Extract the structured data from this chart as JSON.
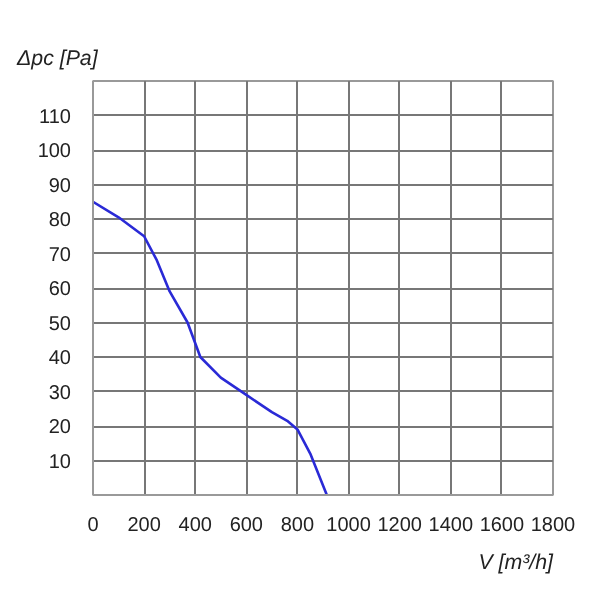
{
  "chart_data": {
    "type": "line",
    "xlabel": "V [m³/h]",
    "ylabel": "Δpc [Pa]",
    "x": [
      0,
      100,
      200,
      250,
      300,
      370,
      420,
      500,
      600,
      700,
      760,
      800,
      850,
      915
    ],
    "series": [
      {
        "color": "#2a2ad6",
        "values": [
          85,
          80.5,
          75,
          68,
          59,
          50,
          40,
          34,
          29,
          24,
          21.5,
          19,
          12,
          0
        ]
      }
    ],
    "xlim": [
      0,
      1800
    ],
    "xticks": [
      0,
      200,
      400,
      600,
      800,
      1000,
      1200,
      1400,
      1600,
      1800
    ],
    "ylim": [
      0,
      120
    ],
    "yticks": [
      {
        "value": 0,
        "label": null
      },
      10,
      20,
      30,
      40,
      50,
      60,
      70,
      80,
      90,
      100,
      110,
      {
        "value": 120,
        "label": null
      }
    ],
    "grid": true,
    "line_style": "solid",
    "marker": "none"
  }
}
